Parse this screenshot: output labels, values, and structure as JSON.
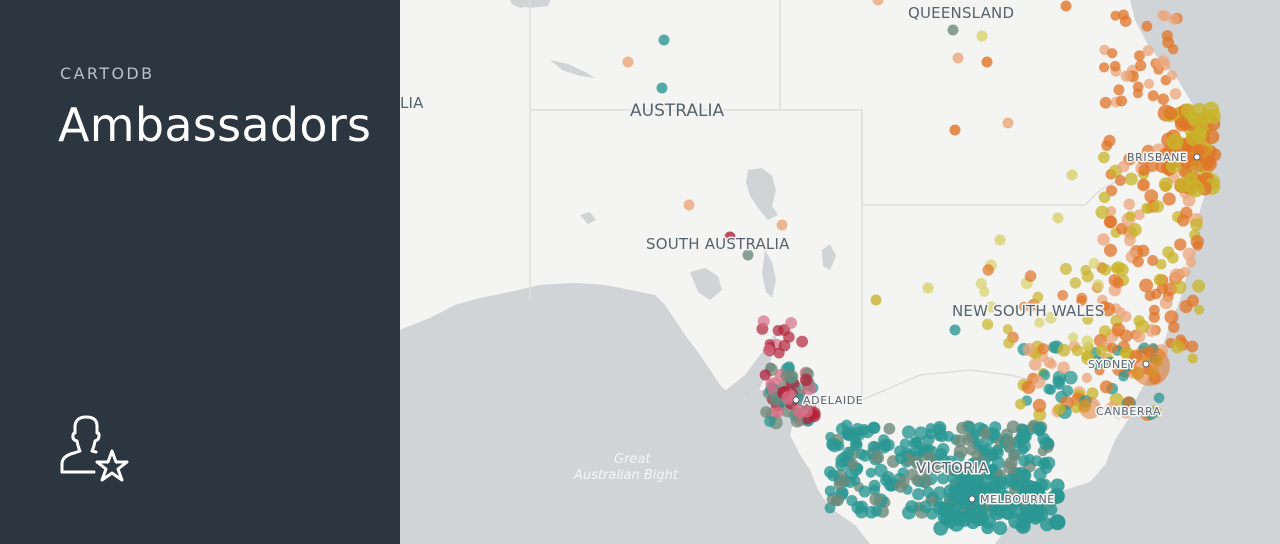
{
  "sidebar": {
    "brand": "CARTODB",
    "title": "Ambassadors",
    "icon": "user-star-icon"
  },
  "map": {
    "labels": {
      "queensland": "QUEENSLAND",
      "australia": "AUSTRALIA",
      "south_australia": "SOUTH AUSTRALIA",
      "new_south_wales": "NEW SOUTH WALES",
      "victoria": "VICTORIA",
      "brisbane": "BRISBANE",
      "sydney": "SYDNEY",
      "adelaide": "ADELAIDE",
      "canberra": "CANBERRA",
      "melbourne": "MELBOURNE",
      "great": "Great",
      "australian_bight": "Australian Bight",
      "cut_label": "LIA"
    },
    "colors": {
      "land": "#f4f4f2",
      "sea": "#d0d4d7",
      "border": "#dcdcdc",
      "teal": "#2a9793",
      "orange": "#e07528",
      "peach": "#eba679",
      "olive": "#c8b42a",
      "crimson": "#b0223a",
      "pink": "#d76d86",
      "grey_teal": "#6f8a7a",
      "khaki": "#d7d26a"
    }
  }
}
